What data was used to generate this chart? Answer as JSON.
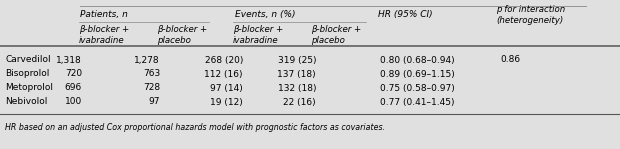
{
  "bg_color": "#e0e0e0",
  "white_bg": "#f5f5f5",
  "row_labels": [
    "Carvedilol",
    "Bisoprolol",
    "Metoprolol",
    "Nebivolol"
  ],
  "data": [
    [
      "1,318",
      "1,278",
      "268 (20)",
      "319 (25)",
      "0.80 (0.68–0.94)",
      "0.86"
    ],
    [
      "720",
      "763",
      "112 (16)",
      "137 (18)",
      "0.89 (0.69–1.15)",
      ""
    ],
    [
      "696",
      "728",
      "97 (14)",
      "132 (18)",
      "0.75 (0.58–0.97)",
      ""
    ],
    [
      "100",
      "97",
      "19 (12)",
      "22 (16)",
      "0.77 (0.41–1.45)",
      ""
    ]
  ],
  "footnote": "HR based on an adjusted Cox proportional hazards model with prognostic factors as covariates.",
  "font_size": 6.5,
  "line_color": "#888888",
  "thick_line_color": "#555555"
}
